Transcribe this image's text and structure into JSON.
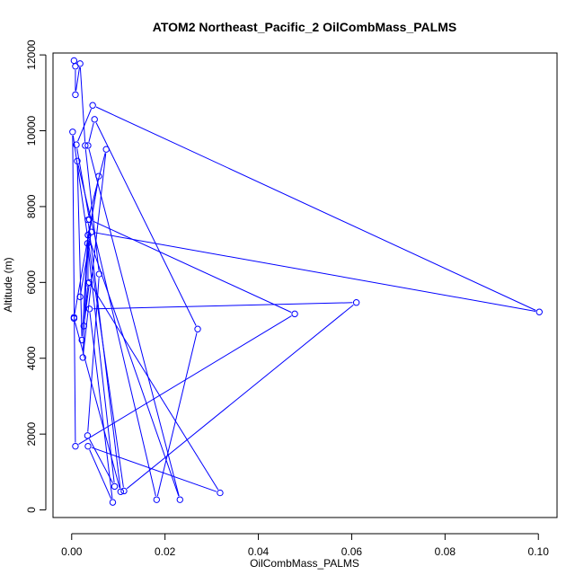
{
  "chart_data": {
    "type": "line",
    "title": "ATOM2 Northeast_Pacific_2 OilCombMass_PALMS",
    "xlabel": "OilCombMass_PALMS",
    "ylabel": "Altitude (m)",
    "xlim": [
      -0.004,
      0.104
    ],
    "ylim": [
      -200,
      12050
    ],
    "xticks": [
      0.0,
      0.02,
      0.04,
      0.06,
      0.08,
      0.1
    ],
    "xtick_labels": [
      "0.00",
      "0.02",
      "0.04",
      "0.06",
      "0.08",
      "0.10"
    ],
    "yticks": [
      0,
      2000,
      4000,
      6000,
      8000,
      10000,
      12000
    ],
    "ytick_labels": [
      "0",
      "2000",
      "4000",
      "6000",
      "8000",
      "10000",
      "12000"
    ],
    "grid": false,
    "line_color": "#0000ff",
    "marker": "open-circle",
    "series": [
      {
        "x": [
          0.0005,
          0.0008,
          0.0008,
          0.0018,
          0.0029,
          0.0059,
          0.0034,
          0.0092,
          0.0034,
          0.0058,
          0.0005,
          0.0005,
          0.0105,
          0.0035,
          0.0074,
          0.0024,
          0.0035,
          0.0232,
          0.0035,
          0.0049,
          0.027,
          0.0182,
          0.0012,
          0.0022,
          0.0035,
          0.0035,
          0.0026,
          0.0038,
          0.0318,
          0.0035,
          0.0088,
          0.0038,
          0.061,
          0.0112,
          0.0002,
          0.0008,
          0.0478,
          0.0038,
          0.001,
          0.0045,
          0.1002,
          0.0042,
          0.0018
        ],
        "y": [
          11850,
          11700,
          10950,
          11770,
          9610,
          6220,
          1960,
          620,
          7030,
          8800,
          5080,
          5050,
          480,
          7650,
          9510,
          4020,
          7250,
          270,
          9610,
          10300,
          4770,
          270,
          9200,
          4480,
          7250,
          5980,
          4850,
          6000,
          450,
          1680,
          200,
          5300,
          5470,
          500,
          9970,
          1680,
          5170,
          7660,
          9630,
          10670,
          5220,
          7330,
          5620
        ]
      }
    ]
  }
}
